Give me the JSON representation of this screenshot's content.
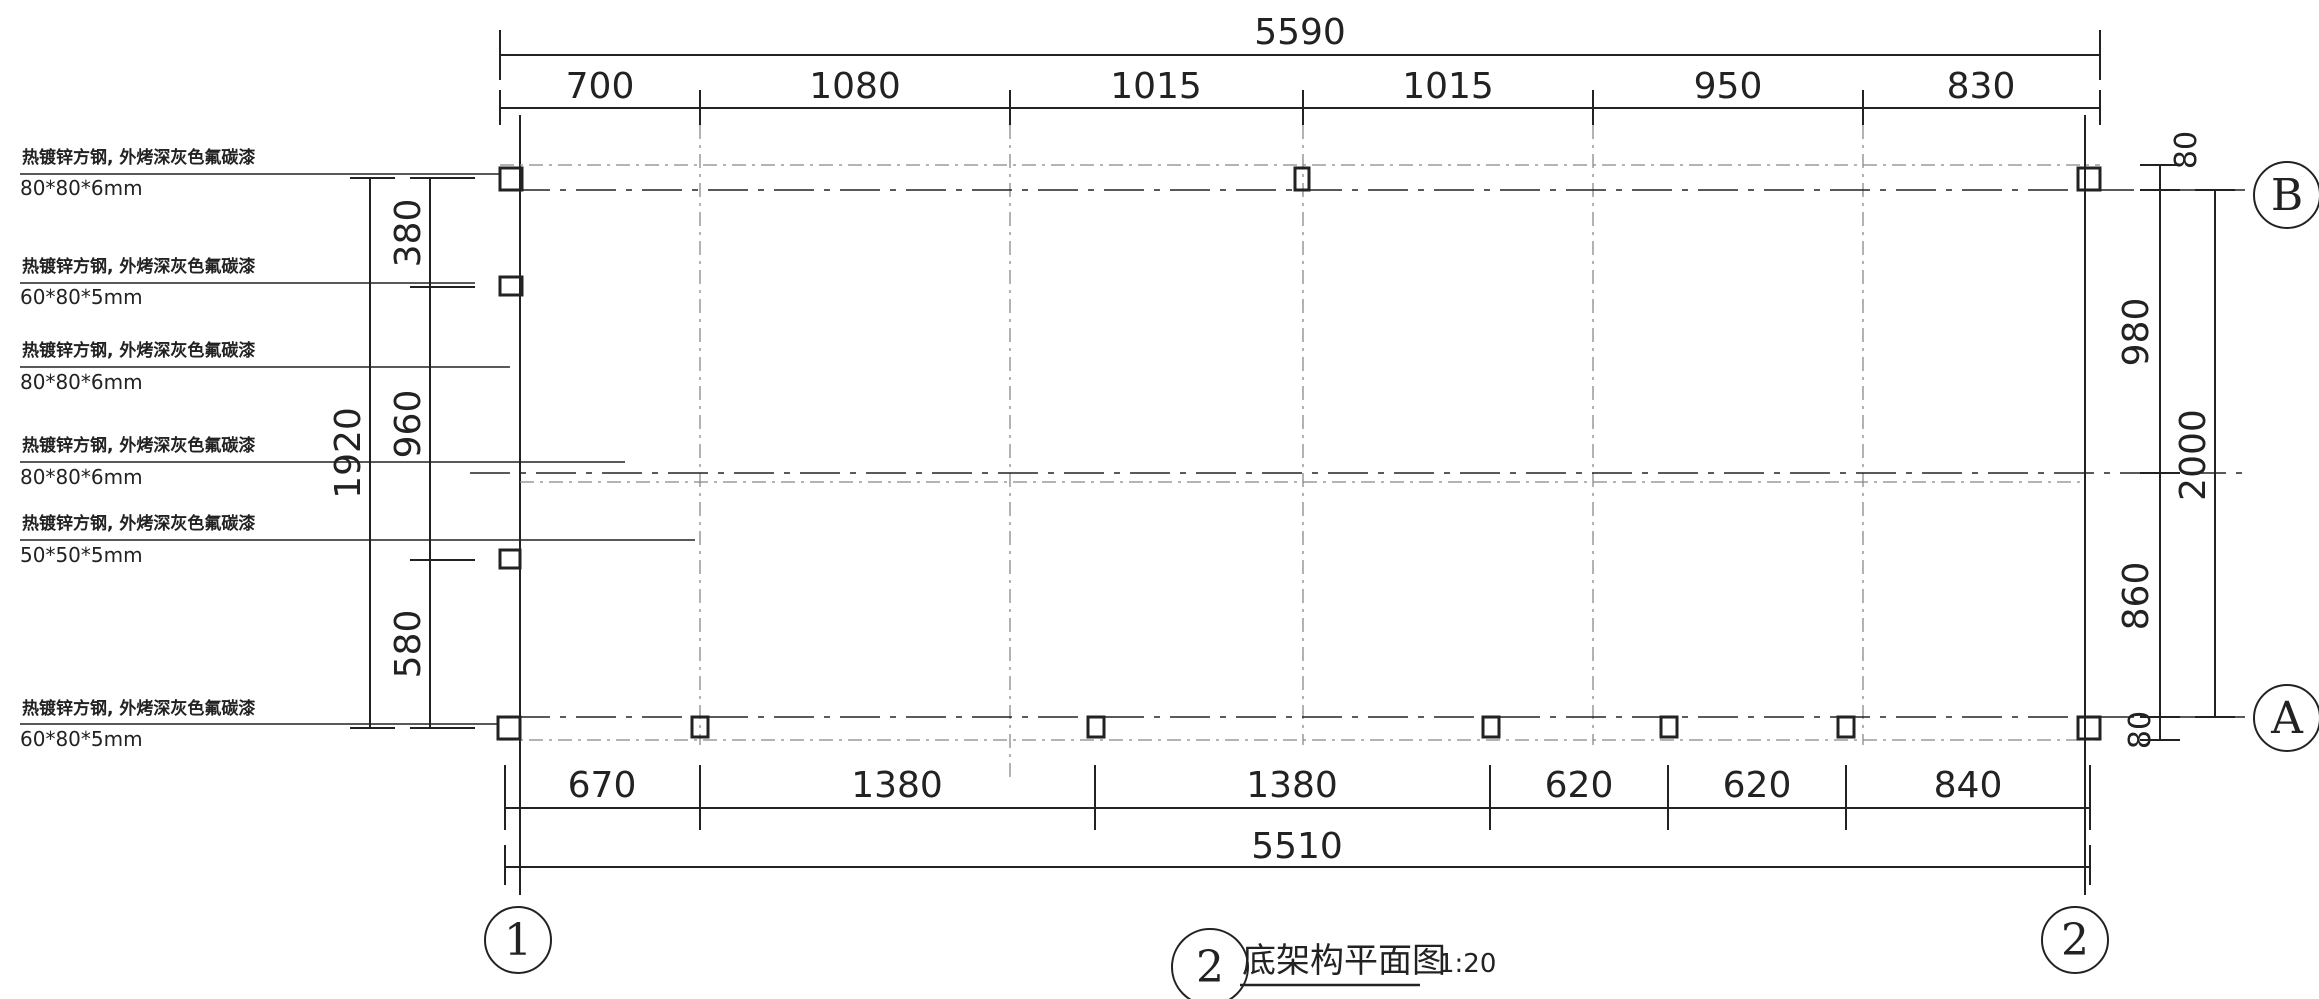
{
  "drawing": {
    "title": "底架构平面图",
    "title_index": "2",
    "scale": "1:20"
  },
  "top_dims": {
    "overall": "5590",
    "segments": [
      "700",
      "1080",
      "1015",
      "1015",
      "950",
      "830"
    ]
  },
  "bottom_dims": {
    "overall": "5510",
    "segments": [
      "670",
      "1380",
      "1380",
      "620",
      "620",
      "840"
    ]
  },
  "left_dims": {
    "overall": "1920",
    "segments": [
      "380",
      "960",
      "580"
    ]
  },
  "right_dims": {
    "overall": "2000",
    "segments": [
      "80",
      "980",
      "860",
      "80"
    ]
  },
  "axes": {
    "vertical": [
      "1",
      "2"
    ],
    "horizontal": [
      "B",
      "A"
    ]
  },
  "member_labels": [
    {
      "material": "热镀锌方钢, 外烤深灰色氟碳漆",
      "size": "80*80*6mm"
    },
    {
      "material": "热镀锌方钢, 外烤深灰色氟碳漆",
      "size": "60*80*5mm"
    },
    {
      "material": "热镀锌方钢, 外烤深灰色氟碳漆",
      "size": "80*80*6mm"
    },
    {
      "material": "热镀锌方钢, 外烤深灰色氟碳漆",
      "size": "80*80*6mm"
    },
    {
      "material": "热镀锌方钢, 外烤深灰色氟碳漆",
      "size": "50*50*5mm"
    },
    {
      "material": "热镀锌方钢, 外烤深灰色氟碳漆",
      "size": "60*80*5mm"
    }
  ]
}
